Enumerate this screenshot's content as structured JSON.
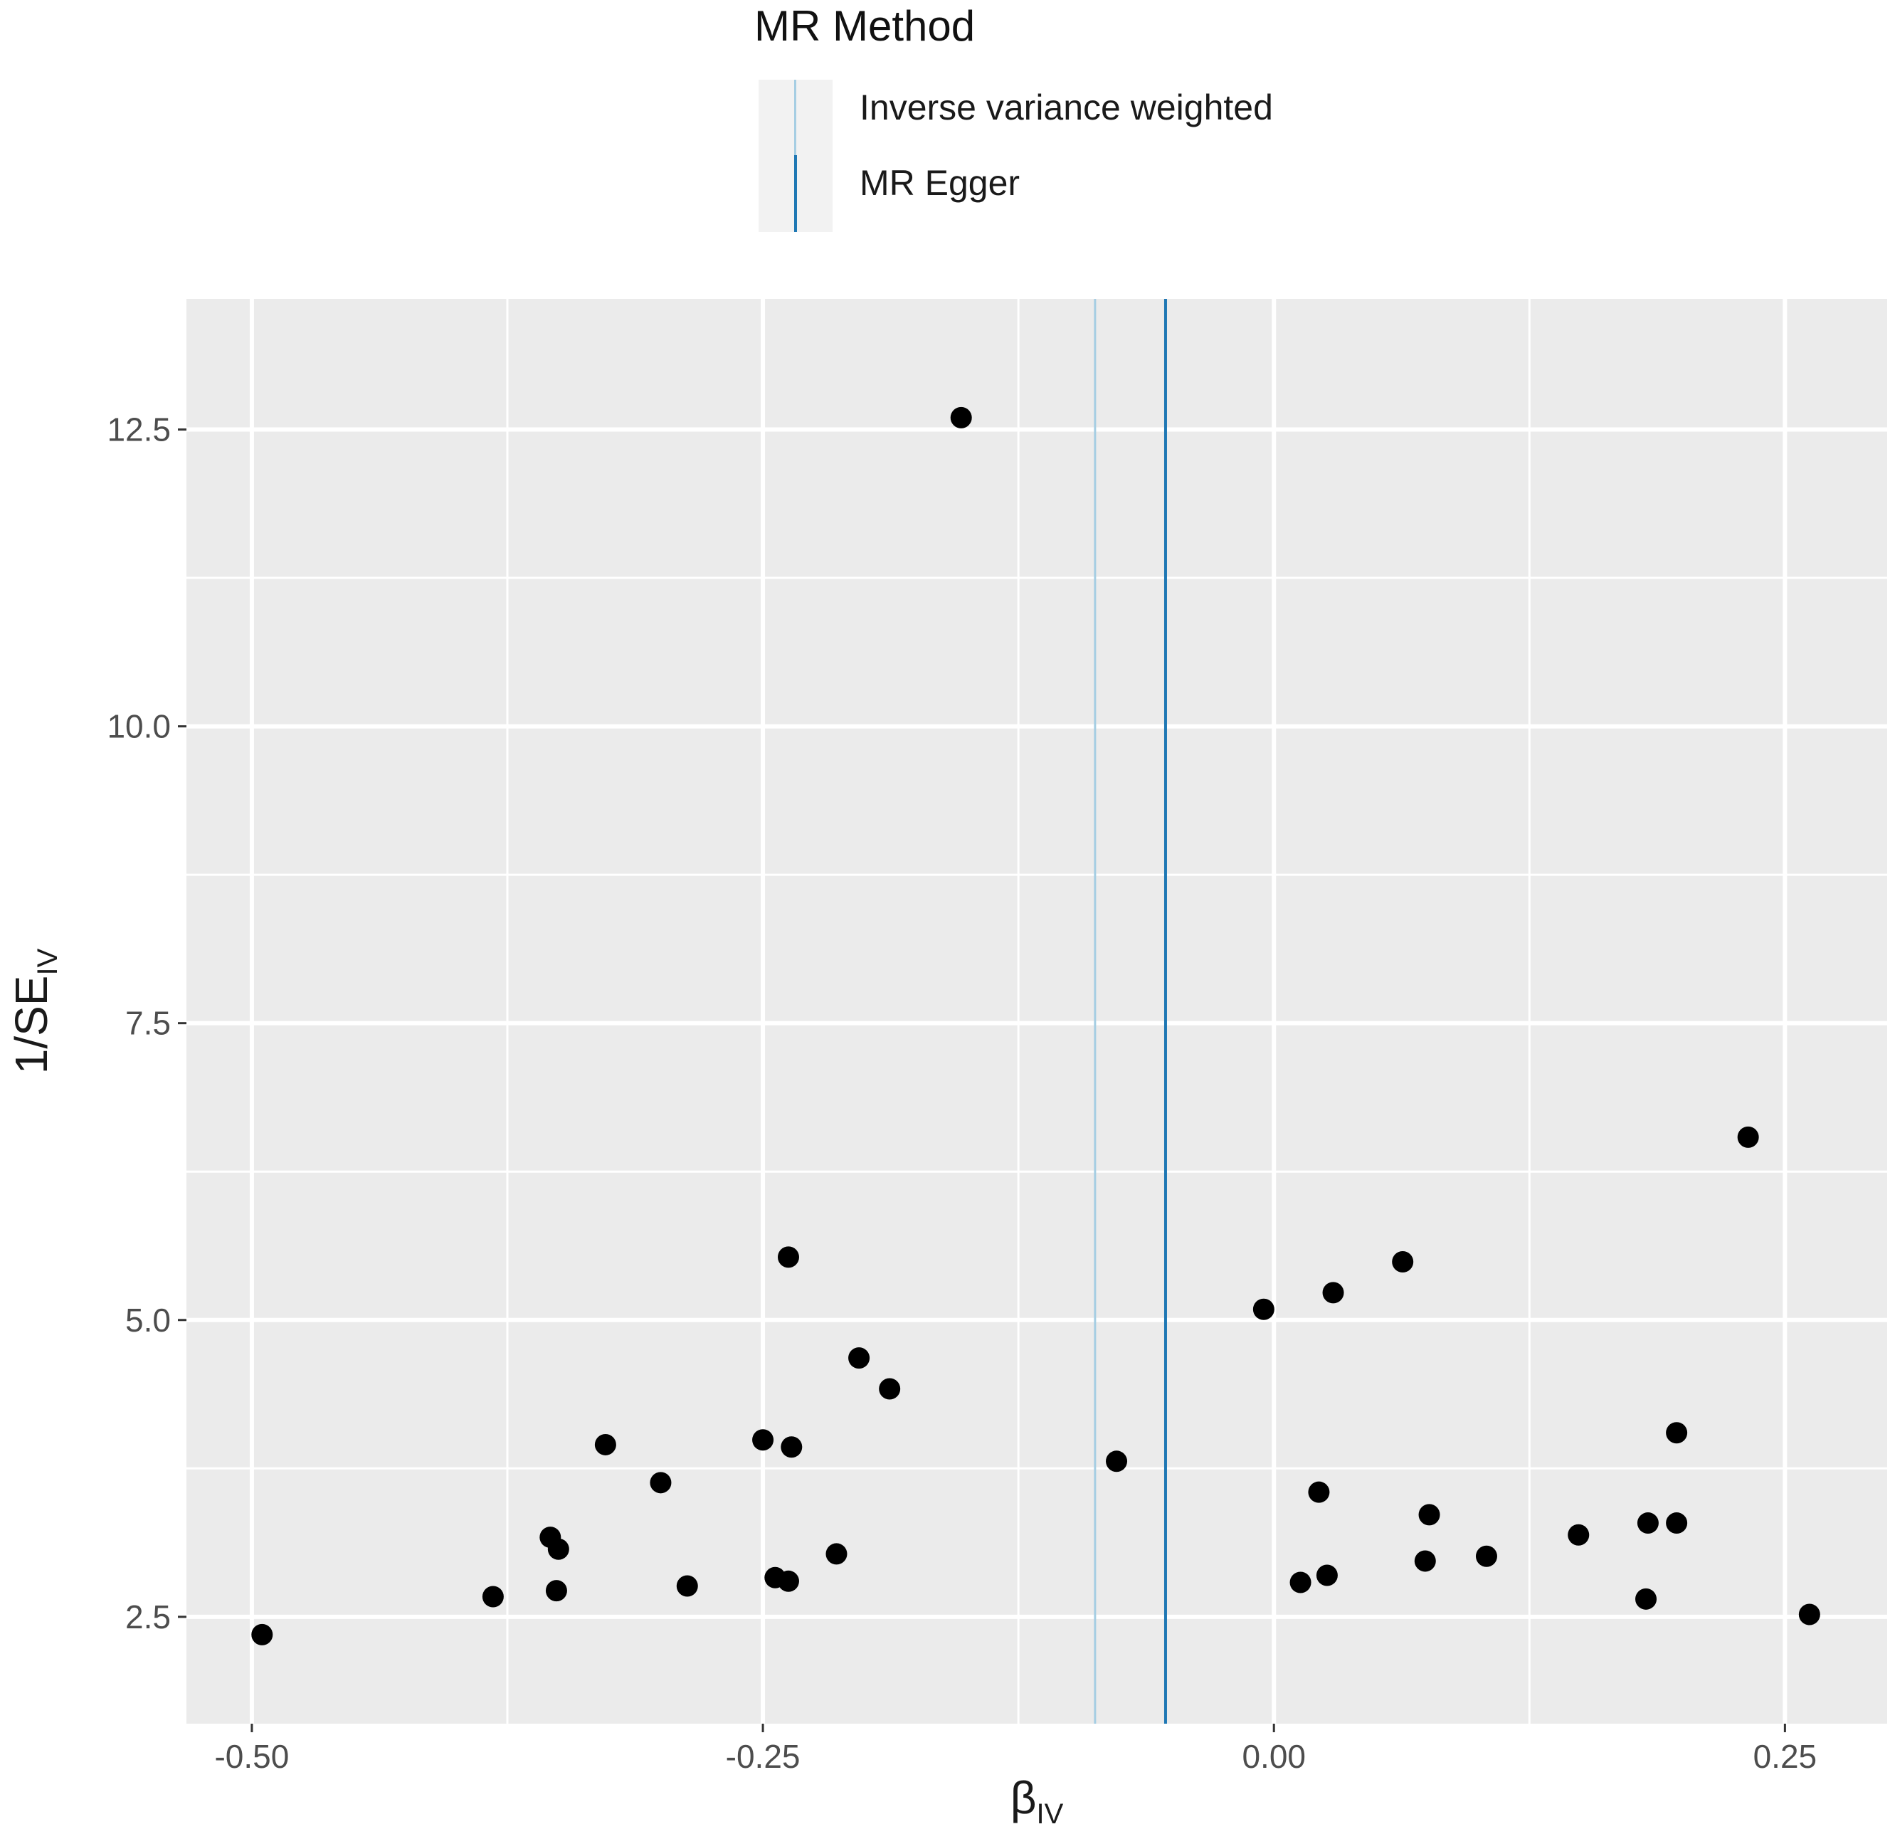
{
  "chart_data": {
    "type": "scatter",
    "title": "",
    "xlabel": "β",
    "xlabel_subscript": "IV",
    "ylabel": "1/SE",
    "ylabel_subscript": "IV",
    "xlim": [
      -0.532,
      0.3
    ],
    "ylim": [
      1.6,
      13.6
    ],
    "x_ticks": [
      -0.5,
      -0.25,
      0.0,
      0.25
    ],
    "x_tick_labels": [
      "-0.50",
      "-0.25",
      "0.00",
      "0.25"
    ],
    "y_ticks": [
      2.5,
      5.0,
      7.5,
      10.0,
      12.5
    ],
    "y_tick_labels": [
      "2.5",
      "5.0",
      "7.5",
      "10.0",
      "12.5"
    ],
    "grid": true,
    "panel_background": "#ebebeb",
    "legend": {
      "title": "MR Method",
      "position": "top",
      "entries": [
        {
          "label": "Inverse variance weighted",
          "color": "#a6cee3"
        },
        {
          "label": "MR Egger",
          "color": "#1f78b4"
        }
      ]
    },
    "vlines": [
      {
        "name": "Inverse variance weighted",
        "x": -0.0875,
        "color": "#a6cee3"
      },
      {
        "name": "MR Egger",
        "x": -0.053,
        "color": "#1f78b4"
      }
    ],
    "points": [
      {
        "x": -0.495,
        "y": 2.35
      },
      {
        "x": -0.382,
        "y": 2.67
      },
      {
        "x": -0.354,
        "y": 3.17
      },
      {
        "x": -0.351,
        "y": 2.72
      },
      {
        "x": -0.35,
        "y": 3.07
      },
      {
        "x": -0.327,
        "y": 3.95
      },
      {
        "x": -0.3,
        "y": 3.63
      },
      {
        "x": -0.287,
        "y": 2.76
      },
      {
        "x": -0.25,
        "y": 3.99
      },
      {
        "x": -0.244,
        "y": 2.83
      },
      {
        "x": -0.2375,
        "y": 5.53
      },
      {
        "x": -0.236,
        "y": 3.93
      },
      {
        "x": -0.2375,
        "y": 2.8
      },
      {
        "x": -0.214,
        "y": 3.03
      },
      {
        "x": -0.203,
        "y": 4.68
      },
      {
        "x": -0.188,
        "y": 4.42
      },
      {
        "x": -0.153,
        "y": 12.6
      },
      {
        "x": -0.077,
        "y": 3.81
      },
      {
        "x": -0.005,
        "y": 5.09
      },
      {
        "x": 0.013,
        "y": 2.79
      },
      {
        "x": 0.022,
        "y": 3.55
      },
      {
        "x": 0.026,
        "y": 2.85
      },
      {
        "x": 0.029,
        "y": 5.23
      },
      {
        "x": 0.063,
        "y": 5.49
      },
      {
        "x": 0.074,
        "y": 2.97
      },
      {
        "x": 0.076,
        "y": 3.36
      },
      {
        "x": 0.104,
        "y": 3.01
      },
      {
        "x": 0.149,
        "y": 3.19
      },
      {
        "x": 0.182,
        "y": 2.65
      },
      {
        "x": 0.183,
        "y": 3.29
      },
      {
        "x": 0.197,
        "y": 4.05
      },
      {
        "x": 0.197,
        "y": 3.29
      },
      {
        "x": 0.232,
        "y": 6.54
      },
      {
        "x": 0.262,
        "y": 2.52
      }
    ]
  }
}
